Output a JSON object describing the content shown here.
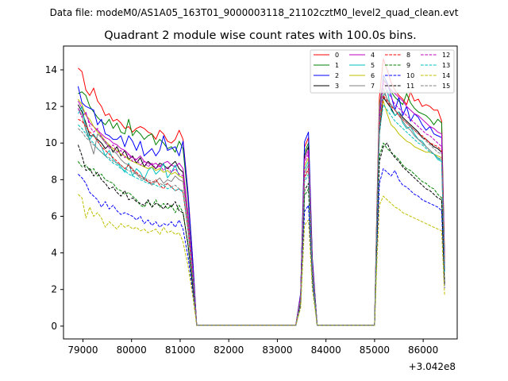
{
  "suptitle": "Data file: modeM0/AS1A05_163T01_9000003118_21102cztM0_level2_quad_clean.evt",
  "chart_data": {
    "type": "line",
    "title": "Quadrant 2 module wise count rates with 100.0s bins.",
    "xlabel": "",
    "ylabel": "",
    "x_offset_label": "+3.042e8",
    "xlim": [
      78600,
      86700
    ],
    "ylim": [
      -0.7,
      15.3
    ],
    "xticks": [
      79000,
      80000,
      81000,
      82000,
      83000,
      84000,
      85000,
      86000
    ],
    "xtick_labels": [
      "79000",
      "80000",
      "81000",
      "82000",
      "83000",
      "84000",
      "85000",
      "86000"
    ],
    "yticks": [
      0,
      2,
      4,
      6,
      8,
      10,
      12,
      14
    ],
    "ytick_labels": [
      "0",
      "2",
      "4",
      "6",
      "8",
      "10",
      "12",
      "14"
    ],
    "legend_location": "upper-right",
    "series": [
      {
        "name": "0",
        "color": "#ff0000",
        "style": "solid",
        "seg1": [
          14.1,
          13.9,
          12.9,
          12.6,
          13.0,
          12.3,
          12.0,
          11.5,
          11.6,
          11.2,
          11.3,
          11.1,
          10.8,
          10.9,
          10.6,
          10.8,
          10.9,
          10.8,
          10.6,
          10.5,
          10.2,
          10.7,
          10.5,
          10.1,
          10.0,
          10.2,
          10.7,
          10.2
        ],
        "spike": 10.3,
        "seg3": [
          12.5,
          14.6,
          14.0,
          13.3,
          12.9,
          12.6,
          12.4,
          12.1,
          12.8,
          12.3,
          12.4,
          12.0,
          12.1,
          12.0,
          11.8,
          11.8,
          11.2
        ]
      },
      {
        "name": "1",
        "color": "#008000",
        "style": "solid",
        "seg1": [
          12.7,
          12.8,
          12.6,
          12.0,
          11.7,
          11.4,
          11.2,
          11.0,
          11.3,
          10.8,
          11.1,
          10.6,
          10.5,
          11.3,
          10.4,
          10.7,
          10.5,
          10.2,
          10.4,
          10.5,
          9.9,
          10.2,
          10.0,
          9.7,
          9.8,
          9.5,
          10.1,
          9.7
        ],
        "spike": 10.0,
        "seg3": [
          12.0,
          13.5,
          13.2,
          12.8,
          12.5,
          12.3,
          12.1,
          12.7,
          12.2,
          11.9,
          11.7,
          11.6,
          11.5,
          11.3,
          11.0,
          11.3,
          11.1
        ]
      },
      {
        "name": "2",
        "color": "#0000ff",
        "style": "solid",
        "seg1": [
          13.1,
          12.2,
          12.0,
          11.9,
          11.8,
          11.0,
          11.3,
          10.5,
          10.4,
          10.2,
          10.2,
          10.4,
          9.8,
          10.4,
          10.1,
          9.6,
          10.1,
          9.3,
          9.5,
          9.7,
          9.3,
          9.6,
          10.4,
          9.6,
          9.7,
          9.8,
          9.3,
          10.1
        ],
        "spike": 10.6,
        "seg3": [
          11.2,
          13.7,
          13.3,
          12.6,
          11.8,
          12.5,
          11.5,
          12.0,
          11.2,
          11.6,
          11.4,
          11.0,
          10.7,
          10.9,
          10.5,
          10.4,
          10.3
        ]
      },
      {
        "name": "3",
        "color": "#000000",
        "style": "solid",
        "seg1": [
          12.1,
          11.7,
          11.1,
          10.4,
          10.4,
          10.2,
          10.0,
          9.7,
          9.9,
          9.5,
          9.8,
          9.3,
          9.6,
          9.1,
          9.3,
          8.9,
          9.2,
          8.7,
          9.0,
          8.8,
          8.6,
          8.9,
          8.8,
          8.6,
          8.8,
          9.0,
          8.6,
          8.4
        ],
        "spike": 9.8,
        "seg3": [
          10.5,
          12.5,
          12.2,
          11.9,
          11.5,
          11.7,
          11.4,
          11.2,
          11.0,
          10.8,
          10.6,
          10.3,
          10.2,
          10.0,
          9.8,
          9.7,
          9.5
        ]
      },
      {
        "name": "4",
        "color": "#bf00bf",
        "style": "solid",
        "seg1": [
          12.3,
          11.9,
          11.6,
          11.1,
          10.9,
          10.7,
          10.5,
          10.3,
          10.2,
          10.0,
          9.9,
          9.7,
          9.6,
          9.4,
          9.2,
          9.1,
          9.3,
          9.0,
          8.9,
          8.8,
          8.9,
          8.7,
          8.9,
          9.0,
          8.8,
          8.7,
          8.9,
          8.6
        ],
        "spike": 9.6,
        "seg3": [
          11.8,
          13.4,
          13.2,
          12.9,
          12.7,
          12.5,
          12.3,
          12.0,
          11.8,
          11.6,
          11.5,
          11.3,
          11.1,
          10.9,
          10.8,
          10.6,
          10.5
        ]
      },
      {
        "name": "5",
        "color": "#00bfbf",
        "style": "solid",
        "seg1": [
          11.6,
          12.0,
          10.8,
          10.2,
          10.5,
          10.1,
          9.8,
          9.3,
          9.6,
          9.1,
          8.9,
          8.7,
          8.4,
          8.9,
          8.2,
          8.6,
          8.4,
          8.0,
          8.5,
          8.7,
          8.3,
          8.5,
          8.9,
          8.1,
          8.4,
          8.8,
          8.2,
          8.1
        ],
        "spike": 9.0,
        "seg3": [
          11.0,
          12.6,
          12.9,
          11.8,
          11.5,
          11.7,
          11.1,
          10.8,
          10.9,
          10.5,
          10.2,
          10.1,
          9.8,
          9.6,
          9.4,
          9.1,
          9.0
        ]
      },
      {
        "name": "6",
        "color": "#bfbf00",
        "style": "solid",
        "seg1": [
          12.4,
          12.1,
          11.5,
          11.3,
          10.9,
          10.6,
          10.4,
          10.1,
          9.9,
          9.7,
          9.6,
          9.4,
          9.3,
          9.1,
          9.0,
          8.9,
          8.8,
          8.7,
          8.6,
          8.7,
          8.5,
          8.6,
          8.4,
          8.5,
          8.3,
          8.4,
          8.2,
          8.1
        ],
        "spike": 9.2,
        "seg3": [
          11.5,
          12.3,
          11.6,
          11.0,
          10.8,
          10.5,
          10.3,
          10.1,
          10.0,
          9.8,
          9.7,
          9.6,
          9.5,
          9.5,
          9.4,
          9.3,
          9.2
        ]
      },
      {
        "name": "7",
        "color": "#808080",
        "style": "solid",
        "seg1": [
          11.9,
          11.5,
          10.7,
          10.1,
          9.4,
          10.5,
          10.3,
          10.0,
          9.8,
          9.6,
          9.4,
          9.1,
          8.9,
          8.8,
          8.6,
          8.3,
          8.1,
          8.0,
          7.9,
          7.7,
          7.9,
          8.1,
          7.8,
          8.0,
          7.9,
          8.2,
          8.0,
          7.9
        ],
        "spike": 8.8,
        "seg3": [
          12.0,
          13.0,
          12.4,
          12.1,
          11.8,
          11.5,
          11.2,
          10.9,
          10.7,
          10.4,
          10.2,
          10.0,
          9.8,
          9.6,
          9.4,
          9.2,
          9.1
        ]
      },
      {
        "name": "8",
        "color": "#ff0000",
        "style": "dashed",
        "seg1": [
          11.3,
          11.2,
          10.9,
          10.6,
          10.4,
          10.1,
          9.8,
          9.6,
          9.4,
          9.2,
          9.0,
          8.8,
          8.6,
          8.8,
          8.5,
          8.4,
          8.2,
          8.1,
          7.9,
          7.8,
          8.0,
          7.7,
          7.5,
          7.8,
          7.6,
          7.4,
          7.5,
          7.3
        ],
        "spike": 8.6,
        "seg3": [
          10.8,
          12.6,
          12.3,
          12.0,
          11.8,
          11.5,
          11.3,
          11.1,
          10.9,
          10.7,
          10.5,
          10.4,
          10.2,
          10.0,
          9.9,
          9.8,
          9.6
        ]
      },
      {
        "name": "9",
        "color": "#008000",
        "style": "dashed",
        "seg1": [
          9.0,
          8.7,
          8.8,
          8.5,
          8.6,
          8.2,
          8.3,
          8.0,
          7.9,
          7.8,
          7.5,
          7.4,
          7.2,
          7.3,
          7.1,
          6.9,
          6.6,
          6.5,
          6.8,
          6.5,
          6.9,
          6.5,
          6.7,
          6.4,
          6.6,
          6.2,
          6.6,
          6.2
        ],
        "spike": 7.5,
        "seg3": [
          9.3,
          10.0,
          9.7,
          9.5,
          9.3,
          9.1,
          8.8,
          8.6,
          8.5,
          8.3,
          8.1,
          7.9,
          7.8,
          7.6,
          7.5,
          7.2,
          7.0
        ]
      },
      {
        "name": "10",
        "color": "#0000ff",
        "style": "dashed",
        "seg1": [
          8.3,
          8.1,
          7.8,
          7.3,
          7.1,
          6.9,
          6.5,
          6.8,
          6.4,
          6.6,
          6.3,
          6.1,
          6.2,
          6.1,
          6.0,
          5.8,
          6.0,
          5.6,
          5.8,
          5.5,
          5.7,
          5.4,
          5.6,
          5.5,
          5.7,
          5.4,
          5.8,
          5.3
        ],
        "spike": 6.6,
        "seg3": [
          7.8,
          8.6,
          8.4,
          8.2,
          8.5,
          8.0,
          7.7,
          7.6,
          7.4,
          7.2,
          7.1,
          6.9,
          6.8,
          6.7,
          6.6,
          6.5,
          6.3
        ]
      },
      {
        "name": "11",
        "color": "#000000",
        "style": "dashed",
        "seg1": [
          9.9,
          9.3,
          8.5,
          8.6,
          8.2,
          8.4,
          8.0,
          7.8,
          7.5,
          7.6,
          7.3,
          7.1,
          7.4,
          6.9,
          7.0,
          6.8,
          6.7,
          6.6,
          6.9,
          6.5,
          6.7,
          6.6,
          6.4,
          6.7,
          6.5,
          6.8,
          6.3,
          6.2
        ],
        "spike": 7.8,
        "seg3": [
          9.0,
          9.8,
          10.0,
          9.5,
          9.2,
          9.0,
          8.7,
          8.5,
          8.3,
          8.1,
          7.9,
          7.7,
          7.5,
          7.4,
          7.2,
          7.0,
          6.9
        ]
      },
      {
        "name": "12",
        "color": "#bf00bf",
        "style": "dashed",
        "seg1": [
          11.9,
          11.4,
          11.7,
          10.9,
          10.6,
          10.8,
          10.3,
          10.1,
          9.7,
          9.9,
          9.5,
          9.6,
          9.2,
          9.4,
          9.0,
          9.1,
          8.8,
          9.0,
          8.7,
          8.9,
          8.6,
          8.8,
          8.5,
          8.7,
          8.4,
          8.6,
          8.3,
          8.2
        ],
        "spike": 9.4,
        "seg3": [
          11.5,
          13.3,
          12.8,
          12.5,
          12.1,
          11.9,
          11.7,
          11.5,
          11.3,
          11.1,
          10.9,
          10.7,
          10.5,
          10.4,
          10.2,
          10.0,
          9.8
        ]
      },
      {
        "name": "13",
        "color": "#00bfbf",
        "style": "dashed",
        "seg1": [
          11.0,
          10.8,
          10.5,
          10.2,
          10.0,
          9.7,
          9.5,
          9.3,
          9.1,
          8.9,
          8.8,
          8.6,
          8.5,
          8.3,
          8.2,
          8.1,
          8.0,
          7.9,
          7.8,
          7.8,
          7.7,
          7.6,
          7.7,
          7.5,
          7.6,
          7.4,
          7.5,
          7.3
        ],
        "spike": 8.3,
        "seg3": [
          10.6,
          12.1,
          11.8,
          11.5,
          11.2,
          11.0,
          10.8,
          10.6,
          10.4,
          10.2,
          10.0,
          9.9,
          9.7,
          9.5,
          9.4,
          9.2,
          9.0
        ]
      },
      {
        "name": "14",
        "color": "#bfbf00",
        "style": "dashed",
        "seg1": [
          7.2,
          7.0,
          5.9,
          6.5,
          6.0,
          6.2,
          5.9,
          5.4,
          5.7,
          5.5,
          5.3,
          5.6,
          5.4,
          5.5,
          5.3,
          5.4,
          5.2,
          5.3,
          5.1,
          5.2,
          5.3,
          5.0,
          5.4,
          5.1,
          5.2,
          5.0,
          5.1,
          4.6
        ],
        "spike": 5.8,
        "seg3": [
          6.6,
          7.1,
          6.9,
          6.7,
          6.5,
          6.4,
          6.2,
          6.1,
          6.0,
          5.9,
          5.8,
          5.7,
          5.6,
          5.5,
          5.4,
          5.3,
          5.2
        ]
      },
      {
        "name": "15",
        "color": "#808080",
        "style": "dashed",
        "seg1": [
          10.8,
          10.6,
          10.3,
          10.1,
          9.9,
          9.7,
          9.5,
          9.3,
          9.2,
          9.0,
          8.9,
          8.8,
          8.6,
          8.5,
          8.4,
          8.3,
          8.2,
          8.1,
          8.0,
          7.9,
          7.9,
          7.8,
          7.7,
          7.8,
          7.6,
          7.7,
          7.5,
          7.4
        ],
        "spike": 8.5,
        "seg3": [
          11.2,
          12.8,
          12.4,
          12.1,
          11.8,
          11.6,
          11.3,
          11.1,
          10.9,
          10.7,
          10.5,
          10.3,
          10.1,
          9.9,
          9.7,
          9.5,
          9.4
        ]
      }
    ]
  }
}
